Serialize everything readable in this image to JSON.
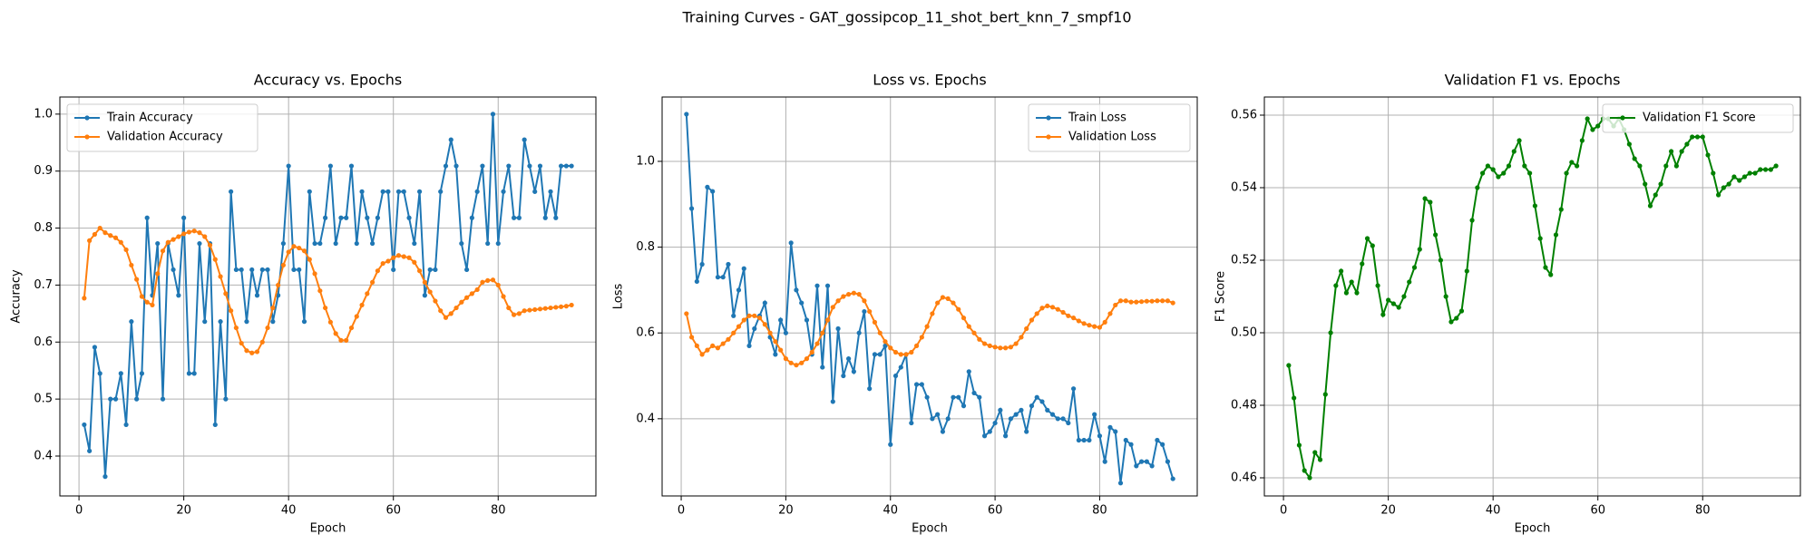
{
  "title": "Training Curves - GAT_gossipcop_11_shot_bert_knn_7_smpf10",
  "chart_data": [
    {
      "type": "line",
      "title": "Accuracy vs. Epochs",
      "xlabel": "Epoch",
      "ylabel": "Accuracy",
      "grid": true,
      "legend": "upper left",
      "x": [
        1,
        2,
        3,
        4,
        5,
        6,
        7,
        8,
        9,
        10,
        11,
        12,
        13,
        14,
        15,
        16,
        17,
        18,
        19,
        20,
        21,
        22,
        23,
        24,
        25,
        26,
        27,
        28,
        29,
        30,
        31,
        32,
        33,
        34,
        35,
        36,
        37,
        38,
        39,
        40,
        41,
        42,
        43,
        44,
        45,
        46,
        47,
        48,
        49,
        50,
        51,
        52,
        53,
        54,
        55,
        56,
        57,
        58,
        59,
        60,
        61,
        62,
        63,
        64,
        65,
        66,
        67,
        68,
        69,
        70,
        71,
        72,
        73,
        74,
        75,
        76,
        77,
        78,
        79,
        80,
        81,
        82,
        83,
        84,
        85,
        86,
        87,
        88,
        89,
        90,
        91,
        92,
        93,
        94
      ],
      "xlim": [
        -3.65,
        98.65
      ],
      "xticks": [
        0,
        20,
        40,
        60,
        80
      ],
      "ylim": [
        0.33,
        1.03
      ],
      "yticks": [
        0.4,
        0.5,
        0.6,
        0.7,
        0.8,
        0.9,
        {
          "value": 1,
          "label": "1.0"
        }
      ],
      "series": [
        {
          "name": "Train Accuracy",
          "color": "#1f77b4",
          "values": [
            0.455,
            0.409,
            0.591,
            0.545,
            0.364,
            0.5,
            0.5,
            0.545,
            0.455,
            0.636,
            0.5,
            0.545,
            0.818,
            0.682,
            0.773,
            0.5,
            0.773,
            0.727,
            0.682,
            0.818,
            0.545,
            0.545,
            0.773,
            0.636,
            0.773,
            0.455,
            0.636,
            0.5,
            0.864,
            0.727,
            0.727,
            0.636,
            0.727,
            0.682,
            0.727,
            0.727,
            0.636,
            0.682,
            0.773,
            0.909,
            0.727,
            0.727,
            0.636,
            0.864,
            0.773,
            0.773,
            0.818,
            0.909,
            0.773,
            0.818,
            0.818,
            0.909,
            0.773,
            0.864,
            0.818,
            0.773,
            0.818,
            0.864,
            0.864,
            0.727,
            0.864,
            0.864,
            0.818,
            0.773,
            0.864,
            0.682,
            0.727,
            0.727,
            0.864,
            0.909,
            0.955,
            0.909,
            0.773,
            0.727,
            0.818,
            0.864,
            0.909,
            0.773,
            1.0,
            0.773,
            0.864,
            0.909,
            0.818,
            0.818,
            0.955,
            0.909,
            0.864,
            0.909,
            0.818,
            0.864,
            0.818,
            0.909,
            0.909,
            0.909
          ]
        },
        {
          "name": "Validation Accuracy",
          "color": "#ff7f0e",
          "values": [
            0.677,
            0.778,
            0.789,
            0.8,
            0.792,
            0.787,
            0.783,
            0.775,
            0.762,
            0.735,
            0.71,
            0.68,
            0.67,
            0.665,
            0.72,
            0.76,
            0.775,
            0.78,
            0.785,
            0.79,
            0.793,
            0.795,
            0.792,
            0.785,
            0.77,
            0.745,
            0.715,
            0.685,
            0.655,
            0.625,
            0.598,
            0.585,
            0.581,
            0.583,
            0.6,
            0.625,
            0.66,
            0.7,
            0.735,
            0.758,
            0.768,
            0.765,
            0.76,
            0.745,
            0.72,
            0.69,
            0.66,
            0.635,
            0.615,
            0.603,
            0.603,
            0.625,
            0.645,
            0.665,
            0.685,
            0.705,
            0.725,
            0.738,
            0.742,
            0.748,
            0.752,
            0.75,
            0.748,
            0.74,
            0.725,
            0.705,
            0.688,
            0.672,
            0.655,
            0.643,
            0.65,
            0.66,
            0.67,
            0.678,
            0.685,
            0.692,
            0.705,
            0.708,
            0.709,
            0.7,
            0.68,
            0.66,
            0.648,
            0.65,
            0.655,
            0.656,
            0.657,
            0.658,
            0.659,
            0.66,
            0.661,
            0.662,
            0.663,
            0.665
          ]
        }
      ]
    },
    {
      "type": "line",
      "title": "Loss vs. Epochs",
      "xlabel": "Epoch",
      "ylabel": "Loss",
      "grid": true,
      "legend": "upper right",
      "x": [
        1,
        2,
        3,
        4,
        5,
        6,
        7,
        8,
        9,
        10,
        11,
        12,
        13,
        14,
        15,
        16,
        17,
        18,
        19,
        20,
        21,
        22,
        23,
        24,
        25,
        26,
        27,
        28,
        29,
        30,
        31,
        32,
        33,
        34,
        35,
        36,
        37,
        38,
        39,
        40,
        41,
        42,
        43,
        44,
        45,
        46,
        47,
        48,
        49,
        50,
        51,
        52,
        53,
        54,
        55,
        56,
        57,
        58,
        59,
        60,
        61,
        62,
        63,
        64,
        65,
        66,
        67,
        68,
        69,
        70,
        71,
        72,
        73,
        74,
        75,
        76,
        77,
        78,
        79,
        80,
        81,
        82,
        83,
        84,
        85,
        86,
        87,
        88,
        89,
        90,
        91,
        92,
        93,
        94
      ],
      "xlim": [
        -3.65,
        98.65
      ],
      "xticks": [
        0,
        20,
        40,
        60,
        80
      ],
      "ylim": [
        0.22,
        1.15
      ],
      "yticks": [
        0.4,
        0.6,
        0.8,
        {
          "value": 1,
          "label": "1.0"
        }
      ],
      "series": [
        {
          "name": "Train Loss",
          "color": "#1f77b4",
          "values": [
            1.11,
            0.89,
            0.72,
            0.76,
            0.94,
            0.93,
            0.73,
            0.73,
            0.76,
            0.64,
            0.7,
            0.75,
            0.57,
            0.61,
            0.64,
            0.67,
            0.59,
            0.55,
            0.63,
            0.6,
            0.81,
            0.7,
            0.67,
            0.63,
            0.55,
            0.71,
            0.52,
            0.71,
            0.44,
            0.61,
            0.5,
            0.54,
            0.51,
            0.6,
            0.65,
            0.47,
            0.55,
            0.55,
            0.57,
            0.34,
            0.5,
            0.52,
            0.55,
            0.39,
            0.48,
            0.48,
            0.45,
            0.4,
            0.41,
            0.37,
            0.4,
            0.45,
            0.45,
            0.43,
            0.51,
            0.46,
            0.45,
            0.36,
            0.37,
            0.39,
            0.42,
            0.36,
            0.4,
            0.41,
            0.42,
            0.37,
            0.43,
            0.45,
            0.44,
            0.42,
            0.41,
            0.4,
            0.4,
            0.39,
            0.47,
            0.35,
            0.35,
            0.35,
            0.41,
            0.36,
            0.3,
            0.38,
            0.37,
            0.25,
            0.35,
            0.34,
            0.29,
            0.3,
            0.3,
            0.29,
            0.35,
            0.34,
            0.3,
            0.26
          ]
        },
        {
          "name": "Validation Loss",
          "color": "#ff7f0e",
          "values": [
            0.645,
            0.59,
            0.57,
            0.55,
            0.56,
            0.57,
            0.565,
            0.575,
            0.585,
            0.6,
            0.615,
            0.63,
            0.64,
            0.64,
            0.635,
            0.62,
            0.6,
            0.58,
            0.56,
            0.54,
            0.53,
            0.525,
            0.53,
            0.54,
            0.555,
            0.575,
            0.6,
            0.63,
            0.66,
            0.675,
            0.685,
            0.69,
            0.693,
            0.69,
            0.675,
            0.65,
            0.625,
            0.6,
            0.58,
            0.565,
            0.555,
            0.55,
            0.55,
            0.555,
            0.57,
            0.59,
            0.615,
            0.645,
            0.67,
            0.683,
            0.68,
            0.67,
            0.655,
            0.635,
            0.615,
            0.6,
            0.585,
            0.575,
            0.57,
            0.567,
            0.565,
            0.565,
            0.567,
            0.575,
            0.59,
            0.61,
            0.63,
            0.645,
            0.658,
            0.663,
            0.66,
            0.655,
            0.648,
            0.64,
            0.635,
            0.628,
            0.622,
            0.618,
            0.615,
            0.613,
            0.625,
            0.645,
            0.665,
            0.675,
            0.675,
            0.672,
            0.672,
            0.673,
            0.674,
            0.674,
            0.675,
            0.675,
            0.675,
            0.67
          ]
        }
      ]
    },
    {
      "type": "line",
      "title": "Validation F1 vs. Epochs",
      "xlabel": "Epoch",
      "ylabel": "F1 Score",
      "grid": true,
      "legend": "upper right",
      "x": [
        1,
        2,
        3,
        4,
        5,
        6,
        7,
        8,
        9,
        10,
        11,
        12,
        13,
        14,
        15,
        16,
        17,
        18,
        19,
        20,
        21,
        22,
        23,
        24,
        25,
        26,
        27,
        28,
        29,
        30,
        31,
        32,
        33,
        34,
        35,
        36,
        37,
        38,
        39,
        40,
        41,
        42,
        43,
        44,
        45,
        46,
        47,
        48,
        49,
        50,
        51,
        52,
        53,
        54,
        55,
        56,
        57,
        58,
        59,
        60,
        61,
        62,
        63,
        64,
        65,
        66,
        67,
        68,
        69,
        70,
        71,
        72,
        73,
        74,
        75,
        76,
        77,
        78,
        79,
        80,
        81,
        82,
        83,
        84,
        85,
        86,
        87,
        88,
        89,
        90,
        91,
        92,
        93,
        94
      ],
      "xlim": [
        -3.65,
        98.65
      ],
      "xticks": [
        0,
        20,
        40,
        60,
        80
      ],
      "ylim": [
        0.455,
        0.565
      ],
      "yticks": [
        0.46,
        0.48,
        {
          "value": 0.5,
          "label": "0.50"
        },
        0.52,
        0.54,
        0.56
      ],
      "series": [
        {
          "name": "Validation F1 Score",
          "color": "#008000",
          "values": [
            0.491,
            0.482,
            0.469,
            0.462,
            0.46,
            0.467,
            0.465,
            0.483,
            0.5,
            0.513,
            0.517,
            0.511,
            0.514,
            0.511,
            0.519,
            0.526,
            0.524,
            0.513,
            0.505,
            0.509,
            0.508,
            0.507,
            0.51,
            0.514,
            0.518,
            0.523,
            0.537,
            0.536,
            0.527,
            0.52,
            0.51,
            0.503,
            0.504,
            0.506,
            0.517,
            0.531,
            0.54,
            0.544,
            0.546,
            0.545,
            0.543,
            0.544,
            0.546,
            0.55,
            0.553,
            0.546,
            0.544,
            0.535,
            0.526,
            0.518,
            0.516,
            0.527,
            0.534,
            0.544,
            0.547,
            0.546,
            0.553,
            0.559,
            0.556,
            0.557,
            0.559,
            0.559,
            0.557,
            0.559,
            0.556,
            0.552,
            0.548,
            0.546,
            0.541,
            0.535,
            0.538,
            0.541,
            0.546,
            0.55,
            0.546,
            0.55,
            0.552,
            0.554,
            0.554,
            0.554,
            0.549,
            0.544,
            0.538,
            0.54,
            0.541,
            0.543,
            0.542,
            0.543,
            0.544,
            0.544,
            0.545,
            0.545,
            0.545,
            0.546
          ]
        }
      ]
    }
  ]
}
